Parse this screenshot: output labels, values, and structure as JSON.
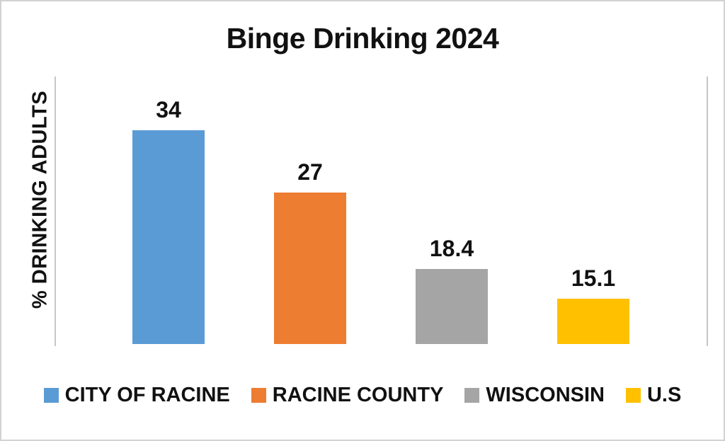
{
  "chart_data": {
    "type": "bar",
    "title": "Binge Drinking 2024",
    "xlabel": "",
    "ylabel": "% DRINKING ADULTS",
    "categories": [
      "CITY OF RACINE",
      "RACINE COUNTY",
      "WISCONSIN",
      "U.S"
    ],
    "values": [
      34,
      27,
      18.4,
      15.1
    ],
    "value_labels": [
      "34",
      "27",
      "18.4",
      "15.1"
    ],
    "colors": [
      "#5B9BD5",
      "#ED7D31",
      "#A5A5A5",
      "#FFC000"
    ],
    "ylim": [
      10,
      40
    ],
    "grid": false,
    "axis_line_color": "#C6C6C6",
    "legend_position": "bottom",
    "legend": [
      {
        "label": "CITY OF RACINE",
        "color": "#5B9BD5"
      },
      {
        "label": "RACINE COUNTY",
        "color": "#ED7D31"
      },
      {
        "label": "WISCONSIN",
        "color": "#A5A5A5"
      },
      {
        "label": "U.S",
        "color": "#FFC000"
      }
    ]
  }
}
